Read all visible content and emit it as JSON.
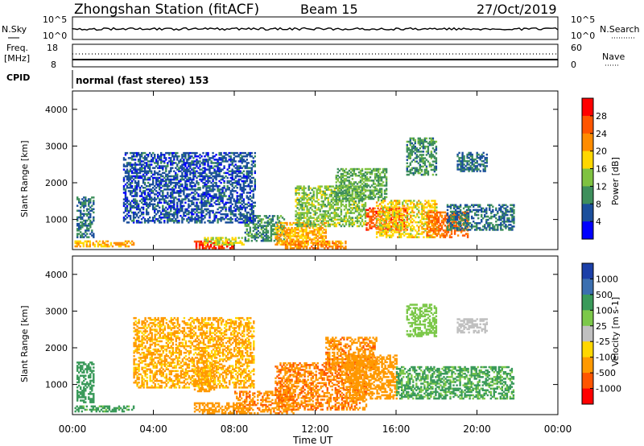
{
  "header": {
    "station": "Zhongshan Station (fitACF)",
    "beam": "Beam 15",
    "date": "27/Oct/2019"
  },
  "noise_panel": {
    "left_label": "N.Sky",
    "right_label": "N.Search",
    "left_ticks": [
      "10^5",
      "10^0"
    ],
    "right_ticks": [
      "10^5",
      "10^0"
    ]
  },
  "freq_panel": {
    "left_label_line1": "Freq.",
    "left_label_line2": "[MHz]",
    "right_label": "Nave",
    "left_ticks": [
      "18",
      "8"
    ],
    "right_ticks": [
      "60",
      "0"
    ]
  },
  "cpid_panel": {
    "label": "CPID",
    "mode_text": "normal (fast stereo) 153"
  },
  "chart_data": [
    {
      "type": "heatmap",
      "title": "",
      "quantity": "Power",
      "xlabel": "",
      "ylabel": "Slant Range [km]",
      "xlim": [
        0,
        24
      ],
      "ylim": [
        180,
        4500
      ],
      "yticks": [
        "4000",
        "3000",
        "2000",
        "1000"
      ],
      "colorbar_label": "Power [dB]",
      "colorbar_ticks": [
        "28",
        "24",
        "20",
        "16",
        "12",
        "8",
        "4"
      ],
      "colorbar_colors": [
        "#ff0000",
        "#ff5500",
        "#ff8c00",
        "#ffd700",
        "#7fc241",
        "#3e8f5c",
        "#1b4f9c",
        "#0000ff"
      ],
      "patches": [
        {
          "t0": 0.2,
          "t1": 1.0,
          "r0": 500,
          "r1": 1600,
          "v": 8
        },
        {
          "t0": 0.1,
          "t1": 3.0,
          "r0": 250,
          "r1": 400,
          "v": 20
        },
        {
          "t0": 6.0,
          "t1": 8.0,
          "r0": 200,
          "r1": 400,
          "v": 28
        },
        {
          "t0": 6.5,
          "t1": 8.5,
          "r0": 300,
          "r1": 500,
          "v": 16
        },
        {
          "t0": 8.5,
          "t1": 10.5,
          "r0": 400,
          "r1": 1100,
          "v": 10
        },
        {
          "t0": 10.0,
          "t1": 12.5,
          "r0": 300,
          "r1": 900,
          "v": 20
        },
        {
          "t0": 10.5,
          "t1": 13.5,
          "r0": 200,
          "r1": 400,
          "v": 22
        },
        {
          "t0": 11.0,
          "t1": 14.5,
          "r0": 800,
          "r1": 1900,
          "v": 14
        },
        {
          "t0": 13.0,
          "t1": 15.5,
          "r0": 1500,
          "r1": 2400,
          "v": 12
        },
        {
          "t0": 14.5,
          "t1": 16.5,
          "r0": 700,
          "r1": 1300,
          "v": 26
        },
        {
          "t0": 15.0,
          "t1": 18.0,
          "r0": 500,
          "r1": 1500,
          "v": 18
        },
        {
          "t0": 17.5,
          "t1": 19.5,
          "r0": 500,
          "r1": 1200,
          "v": 24
        },
        {
          "t0": 18.5,
          "t1": 21.8,
          "r0": 700,
          "r1": 1400,
          "v": 8
        },
        {
          "t0": 16.5,
          "t1": 18.0,
          "r0": 2200,
          "r1": 3200,
          "v": 10
        },
        {
          "t0": 19.0,
          "t1": 20.5,
          "r0": 2300,
          "r1": 2800,
          "v": 8
        },
        {
          "t0": 2.5,
          "t1": 9.0,
          "r0": 900,
          "r1": 2800,
          "v": 6
        }
      ]
    },
    {
      "type": "heatmap",
      "title": "",
      "quantity": "Velocity",
      "xlabel": "Time UT",
      "ylabel": "Slant Range [km]",
      "xlim": [
        0,
        24
      ],
      "ylim": [
        180,
        4500
      ],
      "xticks": [
        "00:00",
        "04:00",
        "08:00",
        "12:00",
        "16:00",
        "20:00",
        "00:00"
      ],
      "yticks": [
        "4000",
        "3000",
        "2000",
        "1000"
      ],
      "colorbar_label": "Velocity [m s-1]",
      "colorbar_ticks": [
        "1000",
        "500",
        "100",
        "25",
        "-25",
        "-100",
        "-500",
        "-1000"
      ],
      "colorbar_colors": [
        "#1b3fa8",
        "#3b6fb0",
        "#3a9a5a",
        "#7cc84a",
        "#c0c0c0",
        "#ffd700",
        "#ff9900",
        "#ff5500",
        "#ff0000"
      ],
      "patches": [
        {
          "t0": 0.2,
          "t1": 1.0,
          "r0": 500,
          "r1": 1600,
          "v": 200
        },
        {
          "t0": 0.1,
          "t1": 3.0,
          "r0": 250,
          "r1": 400,
          "v": 150
        },
        {
          "t0": 6.0,
          "t1": 8.5,
          "r0": 200,
          "r1": 500,
          "v": -200
        },
        {
          "t0": 6.0,
          "t1": 7.0,
          "r0": 800,
          "r1": 1500,
          "v": -300
        },
        {
          "t0": 8.0,
          "t1": 11.0,
          "r0": 200,
          "r1": 800,
          "v": -400
        },
        {
          "t0": 10.0,
          "t1": 14.5,
          "r0": 300,
          "r1": 1600,
          "v": -450
        },
        {
          "t0": 12.5,
          "t1": 15.0,
          "r0": 1400,
          "r1": 2300,
          "v": -400
        },
        {
          "t0": 13.5,
          "t1": 16.0,
          "r0": 600,
          "r1": 1800,
          "v": -200
        },
        {
          "t0": 16.0,
          "t1": 21.8,
          "r0": 600,
          "r1": 1500,
          "v": 120
        },
        {
          "t0": 16.5,
          "t1": 18.0,
          "r0": 2300,
          "r1": 3200,
          "v": 50
        },
        {
          "t0": 19.0,
          "t1": 20.5,
          "r0": 2400,
          "r1": 2800,
          "v": 0
        },
        {
          "t0": 3.0,
          "t1": 9.0,
          "r0": 900,
          "r1": 2800,
          "v": -120
        }
      ]
    }
  ]
}
